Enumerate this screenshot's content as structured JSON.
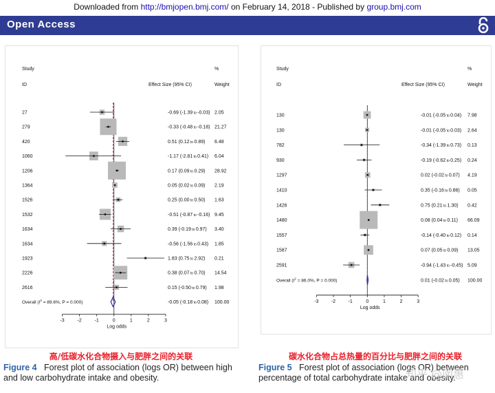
{
  "header": {
    "download_prefix": "Downloaded from ",
    "download_link": "http://bmjopen.bmj.com/",
    "download_middle": " on February 14, 2018 - Published by ",
    "publisher_link": "group.bmj.com"
  },
  "banner": {
    "title": "Open Access"
  },
  "left_panel": {
    "chinese_title": "高/低碳水化合物摄入与肥胖之间的关联",
    "caption_label": "Figure 4",
    "caption_text": "Forest plot of association (logs OR) between high and low carbohydrate intake and obesity."
  },
  "right_panel": {
    "chinese_title": "碳水化合物占总热量的百分比与肥胖之间的关联",
    "caption_label": "Figure 5",
    "caption_text": "Forest plot of association (logs OR) between percentage of total carbohydrate intake and obesity."
  },
  "watermark": "知乎 @闵惠",
  "colors": {
    "banner": "#2f3c93",
    "caption_label": "#2f63a8",
    "chinese_title": "#e8202a",
    "ref_line": "#b0306a",
    "overall_diamond": "#2a2a9a"
  },
  "chart_data": [
    {
      "type": "forest",
      "header": {
        "study": "Study",
        "id": "ID",
        "effect": "Effect Size (95% CI)",
        "pct": "%",
        "weight": "Weight"
      },
      "xlabel": "Log odds",
      "xticks": [
        -3,
        -2,
        -1,
        0,
        1,
        2,
        3
      ],
      "xlim": [
        -3.5,
        3.6
      ],
      "studies": [
        {
          "id": "27",
          "es": -0.69,
          "lo": -1.39,
          "hi": -0.03,
          "label": "-0.69 (-1.39 to -0.03)",
          "weight": "2.05",
          "w": 2.05
        },
        {
          "id": "279",
          "es": -0.33,
          "lo": -0.48,
          "hi": -0.18,
          "label": "-0.33 (-0.48 to -0.18)",
          "weight": "21.27",
          "w": 21.27
        },
        {
          "id": "420",
          "es": 0.51,
          "lo": 0.12,
          "hi": 0.89,
          "label": "0.51 (0.12 to 0.89)",
          "weight": "6.48",
          "w": 6.48
        },
        {
          "id": "1060",
          "es": -1.17,
          "lo": -2.81,
          "hi": 0.41,
          "label": "-1.17 (-2.81 to 0.41)",
          "weight": "6.04",
          "w": 6.04
        },
        {
          "id": "1206",
          "es": 0.17,
          "lo": 0.09,
          "hi": 0.29,
          "label": "0.17 (0.09 to 0.29)",
          "weight": "28.92",
          "w": 28.92
        },
        {
          "id": "1364",
          "es": 0.05,
          "lo": 0.02,
          "hi": 0.09,
          "label": "0.05 (0.02 to 0.09)",
          "weight": "2.19",
          "w": 2.19
        },
        {
          "id": "1526",
          "es": 0.25,
          "lo": 0.0,
          "hi": 0.5,
          "label": "0.25 (0.00 to 0.50)",
          "weight": "1.63",
          "w": 1.63
        },
        {
          "id": "1532",
          "es": -0.51,
          "lo": -0.87,
          "hi": -0.16,
          "label": "-0.51 (-0.87 to -0.16)",
          "weight": "9.45",
          "w": 9.45
        },
        {
          "id": "1634",
          "es": 0.39,
          "lo": -0.19,
          "hi": 0.97,
          "label": "0.39 (-0.19 to 0.97)",
          "weight": "3.40",
          "w": 3.4
        },
        {
          "id": "1634",
          "es": -0.56,
          "lo": -1.56,
          "hi": 0.43,
          "label": "-0.56 (-1.56 to 0.43)",
          "weight": "1.85",
          "w": 1.85
        },
        {
          "id": "1923",
          "es": 1.83,
          "lo": 0.75,
          "hi": 2.92,
          "label": "1.83 (0.75 to 2.92)",
          "weight": "0.21",
          "w": 0.21
        },
        {
          "id": "2226",
          "es": 0.38,
          "lo": 0.07,
          "hi": 0.7,
          "label": "0.38 (0.07 to 0.70)",
          "weight": "14.54",
          "w": 14.54
        },
        {
          "id": "2616",
          "es": 0.15,
          "lo": -0.5,
          "hi": 0.79,
          "label": "0.15 (-0.50 to 0.79)",
          "weight": "1.98",
          "w": 1.98
        }
      ],
      "overall": {
        "label_prefix": "Overall  (I",
        "label_suffix": " = 89.6%, P = 0.000)",
        "es": -0.05,
        "lo": -0.18,
        "hi": 0.08,
        "label": "-0.05 (-0.18 to 0.08)",
        "weight": "100.00"
      }
    },
    {
      "type": "forest",
      "header": {
        "study": "Study",
        "id": "ID",
        "effect": "Effect Size (95% CI)",
        "pct": "%",
        "weight": "Weight"
      },
      "xlabel": "Log odds",
      "xticks": [
        -3,
        -2,
        -1,
        0,
        1,
        2,
        3
      ],
      "xlim": [
        -3.5,
        3.6
      ],
      "studies": [
        {
          "id": "130",
          "es": -0.01,
          "lo": -0.05,
          "hi": 0.04,
          "label": "-0.01 (-0.05 to 0.04)",
          "weight": "7.98",
          "w": 7.98
        },
        {
          "id": "130",
          "es": -0.01,
          "lo": -0.05,
          "hi": 0.03,
          "label": "-0.01 (-0.05 to 0.03)",
          "weight": "2.64",
          "w": 2.64
        },
        {
          "id": "782",
          "es": -0.34,
          "lo": -1.39,
          "hi": 0.73,
          "label": "-0.34 (-1.39 to 0.73)",
          "weight": "0.13",
          "w": 0.13
        },
        {
          "id": "930",
          "es": -0.19,
          "lo": -0.62,
          "hi": 0.25,
          "label": "-0.19 (-0.62 to 0.25)",
          "weight": "0.24",
          "w": 0.24
        },
        {
          "id": "1297",
          "es": 0.02,
          "lo": -0.02,
          "hi": 0.07,
          "label": "0.02 (-0.02 to 0.07)",
          "weight": "4.19",
          "w": 4.19
        },
        {
          "id": "1410",
          "es": 0.35,
          "lo": -0.16,
          "hi": 0.86,
          "label": "0.35 (-0.16 to 0.86)",
          "weight": "0.05",
          "w": 0.05
        },
        {
          "id": "1426",
          "es": 0.75,
          "lo": 0.21,
          "hi": 1.3,
          "label": "0.75 (0.21 to 1.30)",
          "weight": "0.42",
          "w": 0.42
        },
        {
          "id": "1480",
          "es": 0.08,
          "lo": 0.04,
          "hi": 0.11,
          "label": "0.08 (0.04 to 0.11)",
          "weight": "66.09",
          "w": 66.09
        },
        {
          "id": "1557",
          "es": -0.14,
          "lo": -0.4,
          "hi": 0.12,
          "label": "-0.14 (-0.40 to 0.12)",
          "weight": "0.14",
          "w": 0.14
        },
        {
          "id": "1587",
          "es": 0.07,
          "lo": 0.05,
          "hi": 0.09,
          "label": "0.07 (0.05 to 0.09)",
          "weight": "13.05",
          "w": 13.05
        },
        {
          "id": "2591",
          "es": -0.94,
          "lo": -1.43,
          "hi": -0.45,
          "label": "-0.94 (-1.43 to -0.45)",
          "weight": "5.09",
          "w": 5.09
        }
      ],
      "overall": {
        "label_prefix": "Overall  (I",
        "label_suffix": " = 86.0%, P = 0.000)",
        "es": 0.01,
        "lo": -0.02,
        "hi": 0.05,
        "label": "0.01 (-0.02 to 0.05)",
        "weight": "100.00"
      }
    }
  ]
}
